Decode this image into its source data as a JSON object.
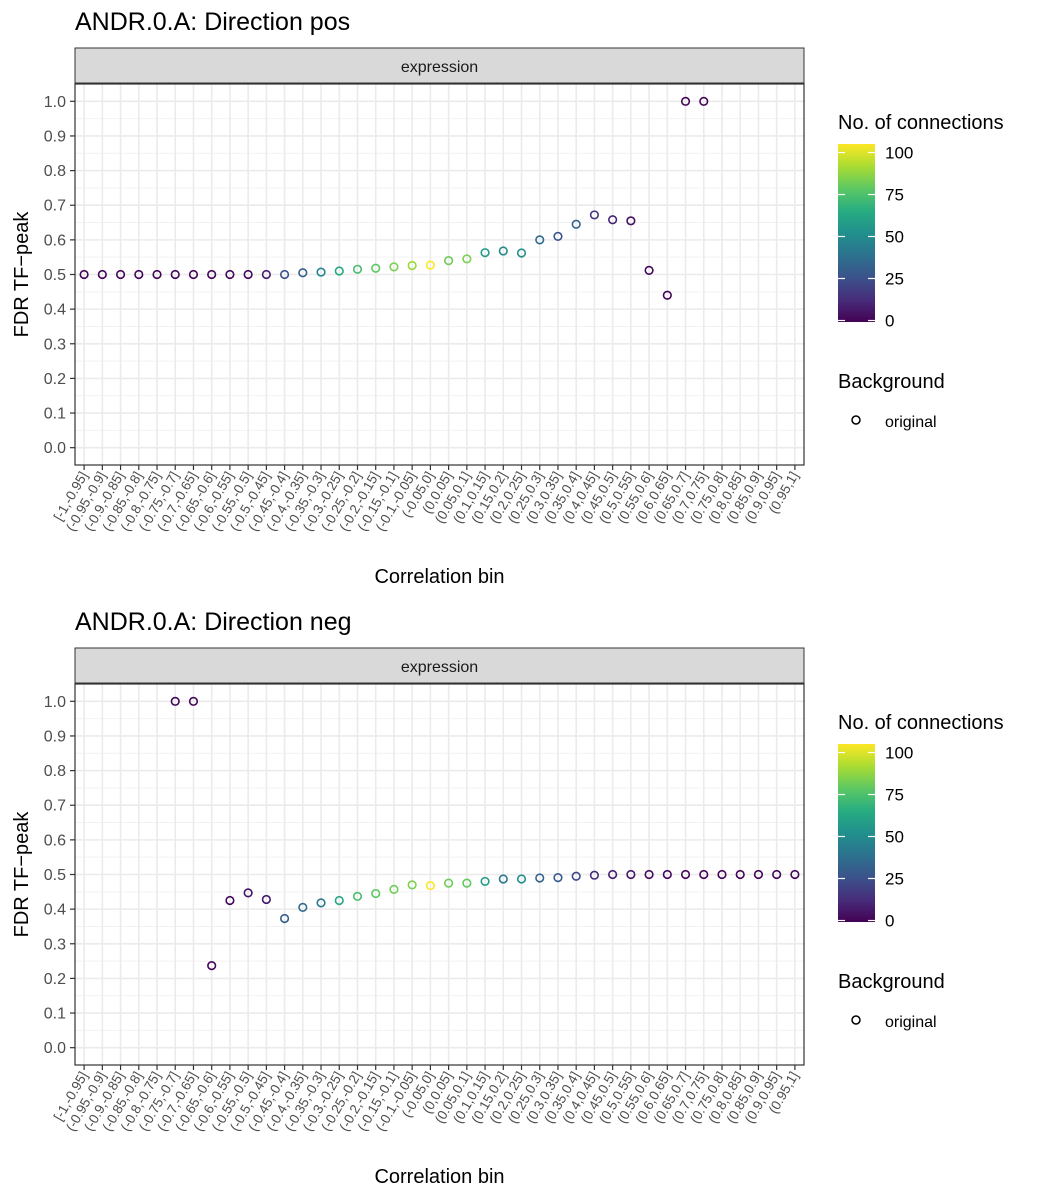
{
  "legend": {
    "color_title": "No. of connections",
    "color_ticks": [
      "0",
      "25",
      "50",
      "75",
      "100"
    ],
    "color_tick_values": [
      0,
      25,
      50,
      75,
      100
    ],
    "shape_title": "Background",
    "shape_label": "original"
  },
  "categories": [
    "[-1,-0.95]",
    "(-0.95,-0.9]",
    "(-0.9,-0.85]",
    "(-0.85,-0.8]",
    "(-0.8,-0.75]",
    "(-0.75,-0.7]",
    "(-0.7,-0.65]",
    "(-0.65,-0.6]",
    "(-0.6,-0.55]",
    "(-0.55,-0.5]",
    "(-0.5,-0.45]",
    "(-0.45,-0.4]",
    "(-0.4,-0.35]",
    "(-0.35,-0.3]",
    "(-0.3,-0.25]",
    "(-0.25,-0.2]",
    "(-0.2,-0.15]",
    "(-0.15,-0.1]",
    "(-0.1,-0.05]",
    "(-0.05,0]",
    "(0,0.05]",
    "(0.05,0.1]",
    "(0.1,0.15]",
    "(0.15,0.2]",
    "(0.2,0.25]",
    "(0.25,0.3]",
    "(0.3,0.35]",
    "(0.35,0.4]",
    "(0.4,0.45]",
    "(0.45,0.5]",
    "(0.5,0.55]",
    "(0.55,0.6]",
    "(0.6,0.65]",
    "(0.65,0.7]",
    "(0.7,0.75]",
    "(0.75,0.8]",
    "(0.8,0.85]",
    "(0.85,0.9]",
    "(0.9,0.95]",
    "(0.95,1]"
  ],
  "chart_data": [
    {
      "type": "scatter",
      "title": "ANDR.0.A: Direction pos",
      "facet": "expression",
      "xlabel": "Correlation bin",
      "ylabel": "FDR TF−peak",
      "ylim": [
        -0.05,
        1.05
      ],
      "yticks": [
        0.0,
        0.1,
        0.2,
        0.3,
        0.4,
        0.5,
        0.6,
        0.7,
        0.8,
        0.9,
        1.0
      ],
      "ytick_labels": [
        "0.0",
        "0.1",
        "0.2",
        "0.3",
        "0.4",
        "0.5",
        "0.6",
        "0.7",
        "0.8",
        "0.9",
        "1.0"
      ],
      "grid": true,
      "points": [
        {
          "bin": 0,
          "fdr": 0.5,
          "n": 1
        },
        {
          "bin": 1,
          "fdr": 0.5,
          "n": 1
        },
        {
          "bin": 2,
          "fdr": 0.5,
          "n": 1
        },
        {
          "bin": 3,
          "fdr": 0.5,
          "n": 1
        },
        {
          "bin": 4,
          "fdr": 0.5,
          "n": 1
        },
        {
          "bin": 5,
          "fdr": 0.5,
          "n": 1
        },
        {
          "bin": 6,
          "fdr": 0.5,
          "n": 1
        },
        {
          "bin": 7,
          "fdr": 0.5,
          "n": 1
        },
        {
          "bin": 8,
          "fdr": 0.5,
          "n": 2
        },
        {
          "bin": 9,
          "fdr": 0.5,
          "n": 2
        },
        {
          "bin": 10,
          "fdr": 0.5,
          "n": 8
        },
        {
          "bin": 11,
          "fdr": 0.5,
          "n": 25
        },
        {
          "bin": 12,
          "fdr": 0.505,
          "n": 30
        },
        {
          "bin": 13,
          "fdr": 0.507,
          "n": 45
        },
        {
          "bin": 14,
          "fdr": 0.51,
          "n": 60
        },
        {
          "bin": 15,
          "fdr": 0.515,
          "n": 70
        },
        {
          "bin": 16,
          "fdr": 0.518,
          "n": 75
        },
        {
          "bin": 17,
          "fdr": 0.522,
          "n": 80
        },
        {
          "bin": 18,
          "fdr": 0.526,
          "n": 85
        },
        {
          "bin": 19,
          "fdr": 0.527,
          "n": 100
        },
        {
          "bin": 20,
          "fdr": 0.54,
          "n": 78
        },
        {
          "bin": 21,
          "fdr": 0.545,
          "n": 80
        },
        {
          "bin": 22,
          "fdr": 0.563,
          "n": 55
        },
        {
          "bin": 23,
          "fdr": 0.568,
          "n": 48
        },
        {
          "bin": 24,
          "fdr": 0.562,
          "n": 50
        },
        {
          "bin": 25,
          "fdr": 0.6,
          "n": 35
        },
        {
          "bin": 26,
          "fdr": 0.61,
          "n": 25
        },
        {
          "bin": 27,
          "fdr": 0.645,
          "n": 32
        },
        {
          "bin": 28,
          "fdr": 0.672,
          "n": 15
        },
        {
          "bin": 29,
          "fdr": 0.658,
          "n": 10
        },
        {
          "bin": 30,
          "fdr": 0.655,
          "n": 5
        },
        {
          "bin": 31,
          "fdr": 0.512,
          "n": 2
        },
        {
          "bin": 32,
          "fdr": 0.44,
          "n": 1
        },
        {
          "bin": 33,
          "fdr": 1.0,
          "n": 1
        },
        {
          "bin": 34,
          "fdr": 1.0,
          "n": 1
        }
      ]
    },
    {
      "type": "scatter",
      "title": "ANDR.0.A: Direction neg",
      "facet": "expression",
      "xlabel": "Correlation bin",
      "ylabel": "FDR TF−peak",
      "ylim": [
        -0.05,
        1.05
      ],
      "yticks": [
        0.0,
        0.1,
        0.2,
        0.3,
        0.4,
        0.5,
        0.6,
        0.7,
        0.8,
        0.9,
        1.0
      ],
      "ytick_labels": [
        "0.0",
        "0.1",
        "0.2",
        "0.3",
        "0.4",
        "0.5",
        "0.6",
        "0.7",
        "0.8",
        "0.9",
        "1.0"
      ],
      "grid": true,
      "points": [
        {
          "bin": 5,
          "fdr": 1.0,
          "n": 1
        },
        {
          "bin": 6,
          "fdr": 1.0,
          "n": 1
        },
        {
          "bin": 7,
          "fdr": 0.237,
          "n": 1
        },
        {
          "bin": 8,
          "fdr": 0.425,
          "n": 2
        },
        {
          "bin": 9,
          "fdr": 0.447,
          "n": 5
        },
        {
          "bin": 10,
          "fdr": 0.428,
          "n": 8
        },
        {
          "bin": 11,
          "fdr": 0.373,
          "n": 30
        },
        {
          "bin": 12,
          "fdr": 0.405,
          "n": 35
        },
        {
          "bin": 13,
          "fdr": 0.418,
          "n": 40
        },
        {
          "bin": 14,
          "fdr": 0.425,
          "n": 60
        },
        {
          "bin": 15,
          "fdr": 0.437,
          "n": 70
        },
        {
          "bin": 16,
          "fdr": 0.445,
          "n": 75
        },
        {
          "bin": 17,
          "fdr": 0.457,
          "n": 78
        },
        {
          "bin": 18,
          "fdr": 0.47,
          "n": 80
        },
        {
          "bin": 19,
          "fdr": 0.468,
          "n": 100
        },
        {
          "bin": 20,
          "fdr": 0.475,
          "n": 78
        },
        {
          "bin": 21,
          "fdr": 0.475,
          "n": 76
        },
        {
          "bin": 22,
          "fdr": 0.48,
          "n": 55
        },
        {
          "bin": 23,
          "fdr": 0.487,
          "n": 40
        },
        {
          "bin": 24,
          "fdr": 0.487,
          "n": 50
        },
        {
          "bin": 25,
          "fdr": 0.49,
          "n": 32
        },
        {
          "bin": 26,
          "fdr": 0.491,
          "n": 28
        },
        {
          "bin": 27,
          "fdr": 0.495,
          "n": 22
        },
        {
          "bin": 28,
          "fdr": 0.498,
          "n": 12
        },
        {
          "bin": 29,
          "fdr": 0.5,
          "n": 8
        },
        {
          "bin": 30,
          "fdr": 0.5,
          "n": 6
        },
        {
          "bin": 31,
          "fdr": 0.5,
          "n": 3
        },
        {
          "bin": 32,
          "fdr": 0.5,
          "n": 2
        },
        {
          "bin": 33,
          "fdr": 0.5,
          "n": 1
        },
        {
          "bin": 34,
          "fdr": 0.5,
          "n": 1
        },
        {
          "bin": 35,
          "fdr": 0.5,
          "n": 1
        },
        {
          "bin": 36,
          "fdr": 0.5,
          "n": 1
        },
        {
          "bin": 37,
          "fdr": 0.5,
          "n": 1
        },
        {
          "bin": 38,
          "fdr": 0.5,
          "n": 1
        },
        {
          "bin": 39,
          "fdr": 0.5,
          "n": 1
        }
      ]
    }
  ]
}
